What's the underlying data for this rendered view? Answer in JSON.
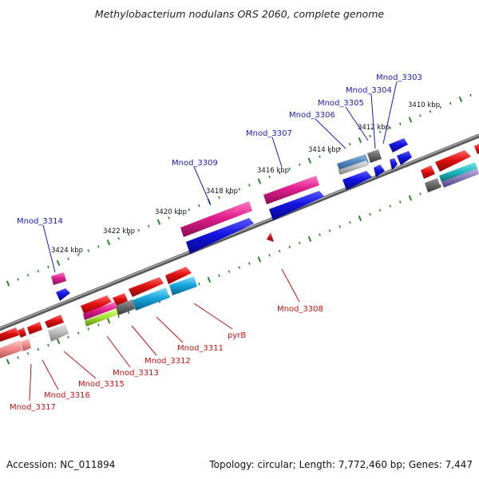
{
  "title": "Methylobacterium nodulans ORS 2060, complete genome",
  "footer": {
    "accession": "Accession: NC_011894",
    "summary": "Topology: circular; Length: 7,772,460 bp; Genes: 7,447"
  },
  "kbp_ticks": [
    "3410 kbp",
    "3412 kbp",
    "3414 kbp",
    "3416 kbp",
    "3418 kbp",
    "3420 kbp",
    "3422 kbp",
    "3424 kbp"
  ],
  "top_labels": [
    "Mnod_3303",
    "Mnod_3304",
    "Mnod_3305",
    "Mnod_3306",
    "Mnod_3307",
    "Mnod_3309",
    "Mnod_3314"
  ],
  "bottom_labels": [
    "Mnod_3308",
    "pyrB",
    "Mnod_3311",
    "Mnod_3312",
    "Mnod_3313",
    "Mnod_3315",
    "Mnod_3316",
    "Mnod_3317"
  ],
  "colors": {
    "backbone": "#777777",
    "tick": "#2a8a2a",
    "top_label": "#1a1acc",
    "bottom_label": "#cc1111",
    "blue_gene": "#1010d8",
    "pink_gene": "#e0208e",
    "red_gene": "#e01010",
    "cyan_gene": "#18a8e0",
    "gray_gene": "#6a6a6a",
    "lightgray_gene": "#b8b8b8"
  }
}
